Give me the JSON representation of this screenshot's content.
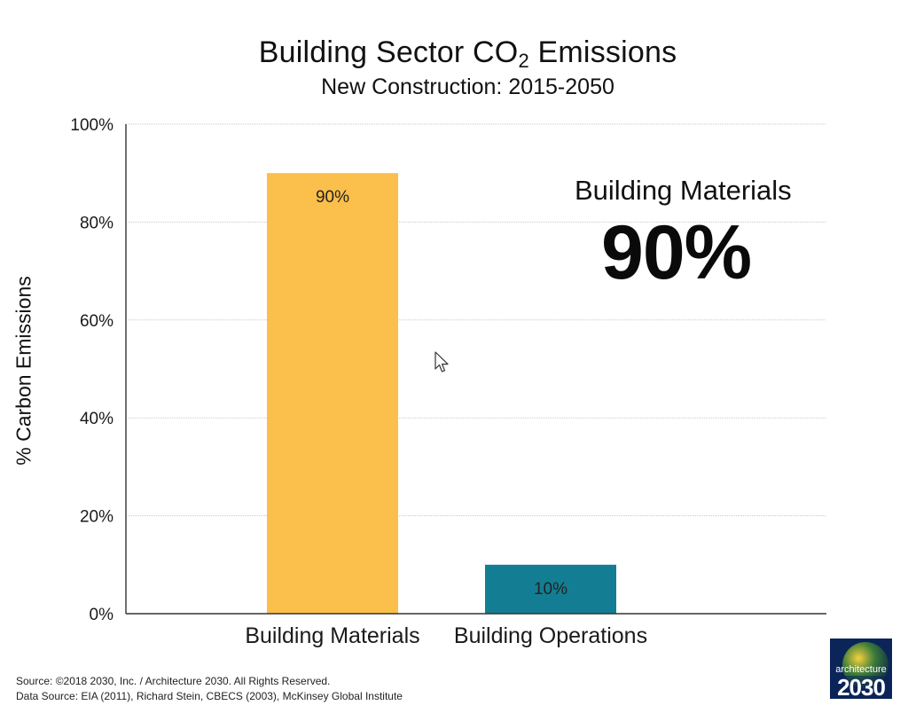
{
  "chart_data": {
    "type": "bar",
    "title_main": "Building Sector CO",
    "title_sub": "2",
    "title_end": " Emissions",
    "subtitle": "New Construction: 2015-2050",
    "ylabel": "% Carbon Emissions",
    "xlabel": "",
    "categories": [
      "Building Materials",
      "Building Operations"
    ],
    "values": [
      90,
      10
    ],
    "value_labels": [
      "90%",
      "10%"
    ],
    "bar_colors": [
      "#FBBF4B",
      "#137E93"
    ],
    "ylim": [
      0,
      100
    ],
    "yticks": [
      0,
      20,
      40,
      60,
      80,
      100
    ],
    "ytick_labels": [
      "0%",
      "20%",
      "40%",
      "60%",
      "80%",
      "100%"
    ],
    "grid": true,
    "legend": "none",
    "annotation": {
      "label": "Building Materials",
      "value": "90%"
    }
  },
  "footer": {
    "source": "Source: ©2018 2030, Inc. / Architecture 2030. All Rights Reserved.",
    "data_source": "Data Source: EIA (2011), Richard Stein, CBECS (2003), McKinsey Global Institute"
  },
  "logo": {
    "line1": "architecture",
    "line2": "2030"
  },
  "icons": {
    "cursor": "mouse-pointer-icon"
  }
}
